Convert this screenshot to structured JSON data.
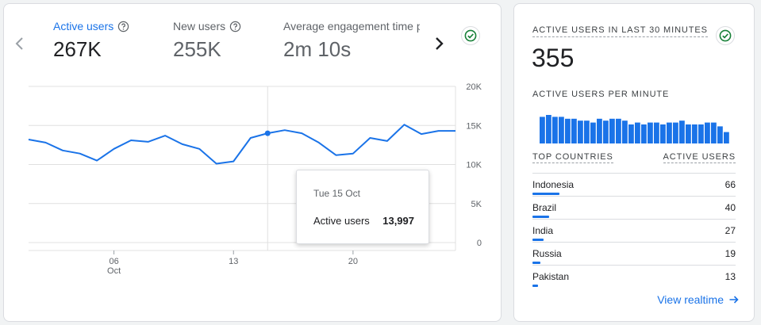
{
  "main": {
    "metrics": [
      {
        "label": "Active users",
        "value": "267K",
        "help_icon": "help-circle-icon"
      },
      {
        "label": "New users",
        "value": "255K",
        "help_icon": "help-circle-icon"
      },
      {
        "label": "Average engagement time p",
        "value": "2m 10s"
      }
    ],
    "status_icon": "check-circle-icon"
  },
  "chart_data": {
    "type": "line",
    "title": "",
    "xlabel": "",
    "ylabel": "",
    "series": [
      {
        "name": "Active users",
        "x": [
          "Oct 1",
          "Oct 2",
          "Oct 3",
          "Oct 4",
          "Oct 5",
          "Oct 6",
          "Oct 7",
          "Oct 8",
          "Oct 9",
          "Oct 10",
          "Oct 11",
          "Oct 12",
          "Oct 13",
          "Oct 14",
          "Oct 15",
          "Oct 16",
          "Oct 17",
          "Oct 18",
          "Oct 19",
          "Oct 20",
          "Oct 21",
          "Oct 22",
          "Oct 23",
          "Oct 24",
          "Oct 25",
          "Oct 26"
        ],
        "values": [
          13200,
          12800,
          11800,
          11400,
          10500,
          12000,
          13100,
          12900,
          13700,
          12600,
          12000,
          10100,
          10400,
          13400,
          13997,
          14400,
          14000,
          12800,
          11200,
          11400,
          13400,
          13000,
          15100,
          13900,
          14300,
          14300
        ]
      }
    ],
    "x_tick_labels": [
      "06\nOct",
      "13",
      "20"
    ],
    "y_ticks": [
      0,
      5000,
      10000,
      15000,
      20000
    ],
    "y_tick_labels": [
      "0",
      "5K",
      "10K",
      "15K",
      "20K"
    ],
    "ylim": [
      0,
      20000
    ],
    "grid": true,
    "highlight_index": 14,
    "tooltip": {
      "date": "Tue 15 Oct",
      "label": "Active users",
      "value": "13,997"
    },
    "color": "#1a73e8"
  },
  "realtime": {
    "title": "ACTIVE USERS IN LAST 30 MINUTES",
    "value": "355",
    "per_minute_label": "ACTIVE USERS PER MINUTE",
    "per_minute": [
      14,
      15,
      14,
      14,
      13,
      13,
      12,
      12,
      11,
      13,
      12,
      13,
      13,
      12,
      10,
      11,
      10,
      11,
      11,
      10,
      11,
      11,
      12,
      10,
      10,
      10,
      11,
      11,
      9,
      6
    ],
    "table_headers": {
      "country": "TOP COUNTRIES",
      "users": "ACTIVE USERS"
    },
    "countries": [
      {
        "name": "Indonesia",
        "value": "66",
        "share": 1.0
      },
      {
        "name": "Brazil",
        "value": "40",
        "share": 0.606
      },
      {
        "name": "India",
        "value": "27",
        "share": 0.409
      },
      {
        "name": "Russia",
        "value": "19",
        "share": 0.288
      },
      {
        "name": "Pakistan",
        "value": "13",
        "share": 0.197
      }
    ],
    "view_link": "View realtime",
    "status_icon": "check-circle-icon"
  },
  "colors": {
    "accent": "#1a73e8",
    "grid": "#e0e0e0",
    "success": "#188038"
  }
}
